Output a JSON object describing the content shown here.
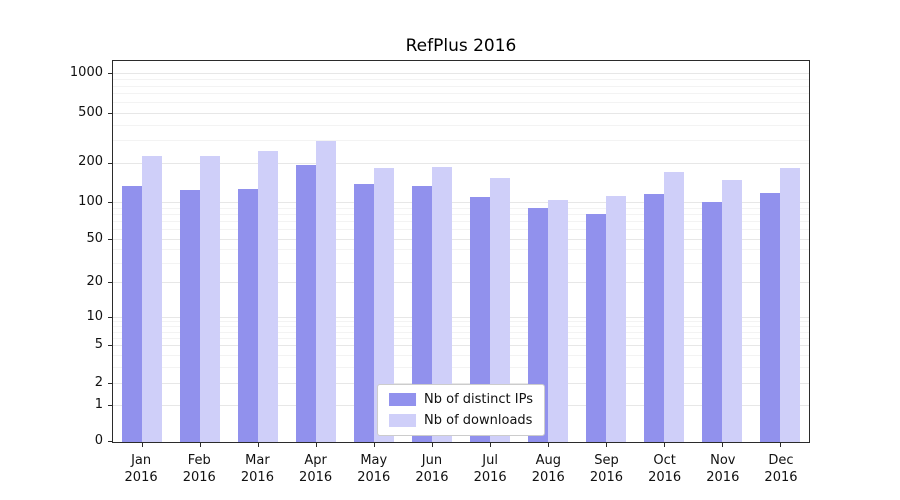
{
  "chart_data": {
    "type": "bar",
    "title": "RefPlus 2016",
    "categories": [
      "Jan",
      "Feb",
      "Mar",
      "Apr",
      "May",
      "Jun",
      "Jul",
      "Aug",
      "Sep",
      "Oct",
      "Nov",
      "Dec"
    ],
    "category_year": "2016",
    "series": [
      {
        "name": "Nb of distinct IPs",
        "color": "#9191ed",
        "values": [
          135,
          125,
          128,
          195,
          140,
          135,
          112,
          92,
          82,
          118,
          102,
          120
        ]
      },
      {
        "name": "Nb of downloads",
        "color": "#cfcff9",
        "values": [
          230,
          230,
          250,
          300,
          185,
          187,
          155,
          105,
          113,
          172,
          150,
          186
        ]
      }
    ],
    "y_ticks": [
      0,
      1,
      2,
      5,
      10,
      20,
      50,
      100,
      200,
      500,
      1000
    ],
    "y_scale": "symlog",
    "ylim": [
      0,
      1000
    ],
    "grid": true,
    "legend_position": "lower center"
  }
}
